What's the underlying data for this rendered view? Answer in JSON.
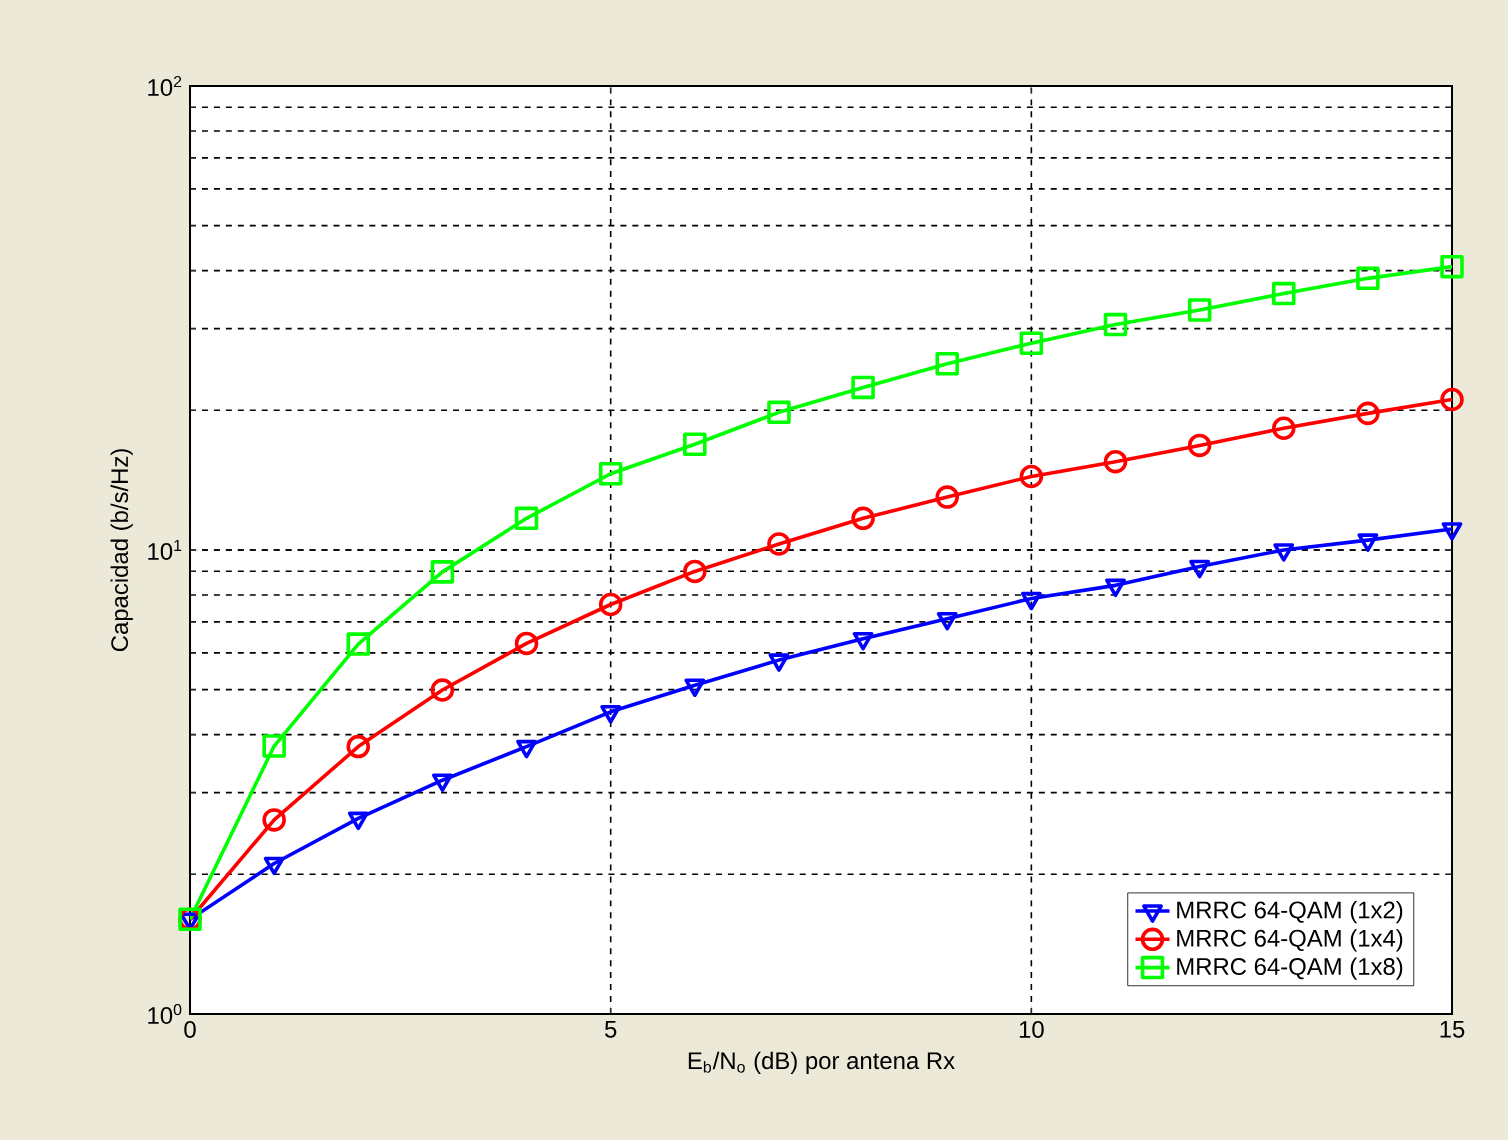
{
  "chart_data": {
    "type": "line",
    "xlabel": "E$_{b}$/N$_{o}$ (dB) por antena Rx",
    "ylabel": "Capacidad (b/s/Hz)",
    "log": "y",
    "grid": true,
    "legend": "bottom right",
    "line_style": "solid",
    "x": [
      0,
      1,
      2,
      3,
      4,
      5,
      6,
      7,
      8,
      9,
      10,
      11,
      12,
      13,
      14,
      15
    ],
    "xlim": [
      0,
      15
    ],
    "xticks": [
      0,
      5,
      10,
      15
    ],
    "ylim": [
      1,
      100
    ],
    "yticks": [
      {
        "value": 1,
        "label": "10$^{0}$"
      },
      {
        "value": 10,
        "label": "10$^{1}$"
      },
      {
        "value": 100,
        "label": "10$^{2}$"
      }
    ],
    "series": [
      {
        "name": "MRRC 64-QAM (1x2)",
        "color": "#0000ff",
        "marker": "triangle",
        "values": [
          1.6,
          2.11,
          2.64,
          3.19,
          3.77,
          4.48,
          5.11,
          5.79,
          6.44,
          7.11,
          7.86,
          8.39,
          9.21,
          10.0,
          10.5,
          11.1
        ]
      },
      {
        "name": "MRRC 64-QAM (1x4)",
        "color": "#ff0000",
        "marker": "circle",
        "values": [
          1.6,
          2.62,
          3.77,
          4.99,
          6.29,
          7.63,
          8.99,
          10.3,
          11.7,
          13.0,
          14.4,
          15.5,
          16.8,
          18.3,
          19.7,
          21.1
        ]
      },
      {
        "name": "MRRC 64-QAM (1x8)",
        "color": "#00ff00",
        "marker": "square",
        "values": [
          1.6,
          3.78,
          6.27,
          8.97,
          11.7,
          14.6,
          16.9,
          19.8,
          22.4,
          25.2,
          27.9,
          30.6,
          32.9,
          35.7,
          38.5,
          40.8
        ]
      }
    ]
  }
}
